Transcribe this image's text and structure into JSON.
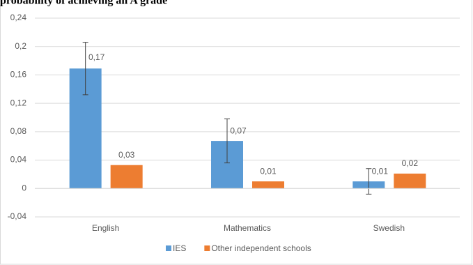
{
  "chart_data": {
    "type": "bar",
    "title": "probability of achieving an A grade",
    "categories": [
      "English",
      "Mathematics",
      "Swedish"
    ],
    "series": [
      {
        "name": "IES",
        "color": "#5b9bd5",
        "values": [
          0.169,
          0.067,
          0.01
        ],
        "value_labels": [
          "0,17",
          "0,07",
          "0,01"
        ],
        "errors": [
          0.037,
          0.031,
          0.018
        ]
      },
      {
        "name": "Other independent schools",
        "color": "#ed7d31",
        "values": [
          0.033,
          0.01,
          0.021
        ],
        "value_labels": [
          "0,03",
          "0,01",
          "0,02"
        ]
      }
    ],
    "ylim": [
      -0.04,
      0.24
    ],
    "yticks": [
      {
        "value": -0.04,
        "label": "-0,04"
      },
      0,
      {
        "value": 0.04,
        "label": "0,04"
      },
      {
        "value": 0.08,
        "label": "0,08"
      },
      {
        "value": 0.12,
        "label": "0,12"
      },
      {
        "value": 0.16,
        "label": "0,16"
      },
      {
        "value": 0.2,
        "label": "0,2"
      },
      {
        "value": 0.24,
        "label": "0,24"
      }
    ],
    "grid": true,
    "legend": "bottom"
  }
}
